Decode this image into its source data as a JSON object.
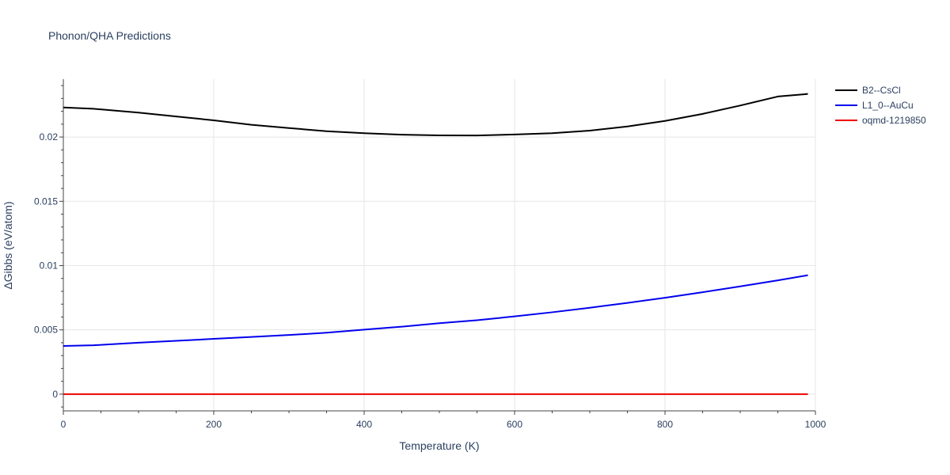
{
  "chart_data": {
    "type": "line",
    "title": "Phonon/QHA Predictions",
    "xlabel": "Temperature (K)",
    "ylabel": "ΔGibbs (eV/atom)",
    "xlim": [
      0,
      1000
    ],
    "ylim": [
      -0.0013,
      0.0245
    ],
    "grid": true,
    "legend_position": "top-right",
    "x_ticks": [
      {
        "value": 0,
        "label": "0"
      },
      {
        "value": 200,
        "label": "200"
      },
      {
        "value": 400,
        "label": "400"
      },
      {
        "value": 600,
        "label": "600"
      },
      {
        "value": 800,
        "label": "800"
      },
      {
        "value": 1000,
        "label": "1000"
      }
    ],
    "y_ticks": [
      {
        "value": 0,
        "label": "0"
      },
      {
        "value": 0.005,
        "label": "0.005"
      },
      {
        "value": 0.01,
        "label": "0.01"
      },
      {
        "value": 0.015,
        "label": "0.015"
      },
      {
        "value": 0.02,
        "label": "0.02"
      }
    ],
    "series": [
      {
        "name": "B2--CsCl",
        "color": "#000000",
        "x": [
          0,
          40,
          100,
          150,
          200,
          250,
          300,
          350,
          400,
          450,
          500,
          550,
          600,
          650,
          700,
          750,
          800,
          850,
          900,
          950,
          990
        ],
        "y": [
          0.0223,
          0.0222,
          0.0219,
          0.0216,
          0.0213,
          0.02095,
          0.0207,
          0.02045,
          0.0203,
          0.02018,
          0.02013,
          0.02012,
          0.0202,
          0.0203,
          0.0205,
          0.02082,
          0.02125,
          0.0218,
          0.02245,
          0.02315,
          0.02335
        ]
      },
      {
        "name": "L1_0--AuCu",
        "color": "#0000ee",
        "x": [
          0,
          40,
          100,
          150,
          200,
          250,
          300,
          350,
          400,
          450,
          500,
          550,
          600,
          650,
          700,
          750,
          800,
          850,
          900,
          950,
          990
        ],
        "y": [
          0.00375,
          0.0038,
          0.004,
          0.00415,
          0.0043,
          0.00445,
          0.0046,
          0.00478,
          0.00502,
          0.00525,
          0.00552,
          0.00575,
          0.00605,
          0.00637,
          0.00672,
          0.0071,
          0.0075,
          0.00793,
          0.00838,
          0.00885,
          0.00925
        ]
      },
      {
        "name": "oqmd-1219850",
        "color": "#ee0000",
        "x": [
          0,
          990
        ],
        "y": [
          0,
          0
        ]
      }
    ]
  }
}
